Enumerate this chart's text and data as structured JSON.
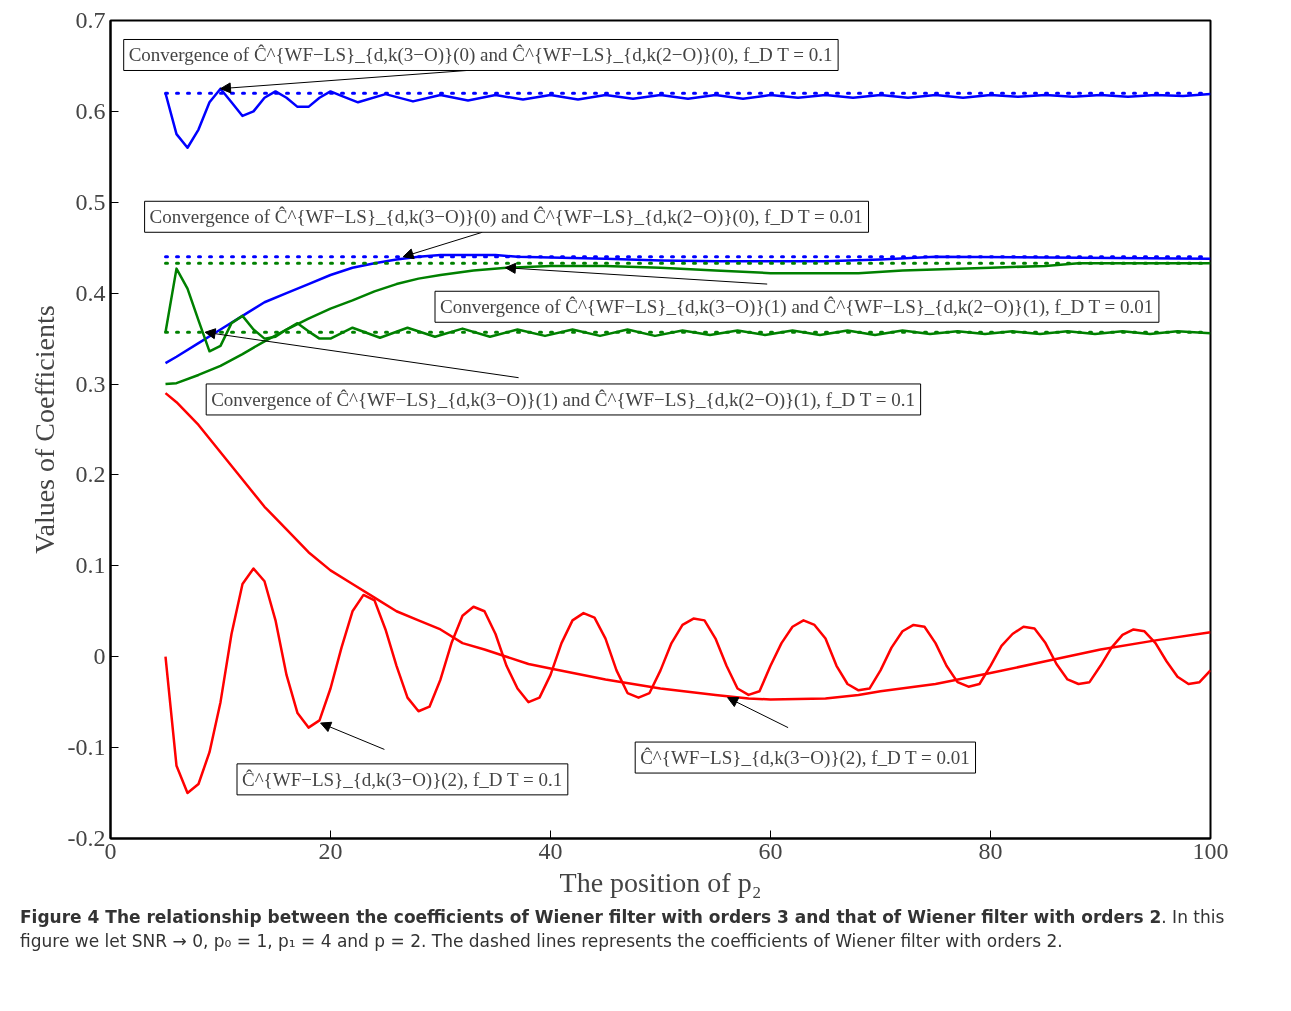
{
  "chart_data": {
    "type": "line",
    "xlabel": "The position of p₂",
    "ylabel": "Values of Coefficients",
    "xlim": [
      0,
      100
    ],
    "ylim": [
      -0.2,
      0.7
    ],
    "xticks": [
      0,
      20,
      40,
      60,
      80,
      100
    ],
    "yticks": [
      -0.2,
      -0.1,
      0,
      0.1,
      0.2,
      0.3,
      0.4,
      0.5,
      0.6,
      0.7
    ],
    "grid": false,
    "line_style": "solid",
    "series": [
      {
        "color": "#0000ff",
        "x": [
          5,
          6,
          7,
          8,
          9,
          10,
          11,
          12,
          13,
          14,
          15,
          16,
          17,
          18,
          19,
          20,
          21,
          22.5,
          25,
          27.5,
          30,
          32.5,
          35,
          37.5,
          40,
          42.5,
          45,
          47.5,
          50,
          52.5,
          55,
          57.5,
          60,
          62.5,
          65,
          67.5,
          70,
          72.5,
          75,
          77.5,
          80,
          82.5,
          85,
          87.5,
          90,
          92.5,
          95,
          97.5,
          100
        ],
        "values": [
          0.62,
          0.575,
          0.56,
          0.58,
          0.61,
          0.625,
          0.61,
          0.595,
          0.6,
          0.615,
          0.622,
          0.615,
          0.605,
          0.605,
          0.615,
          0.622,
          0.617,
          0.61,
          0.619,
          0.611,
          0.618,
          0.612,
          0.618,
          0.613,
          0.618,
          0.613,
          0.618,
          0.614,
          0.618,
          0.614,
          0.618,
          0.614,
          0.618,
          0.615,
          0.618,
          0.615,
          0.618,
          0.615,
          0.618,
          0.615,
          0.618,
          0.616,
          0.618,
          0.616,
          0.618,
          0.616,
          0.618,
          0.617,
          0.619
        ]
      },
      {
        "color": "#0000ff",
        "line_style": "dotted",
        "x": [
          5,
          100
        ],
        "values": [
          0.62,
          0.62
        ]
      },
      {
        "color": "#0000ff",
        "x": [
          5,
          6,
          8,
          10,
          12,
          14,
          16,
          18,
          20,
          22,
          24,
          26,
          28,
          30,
          35,
          37,
          45,
          50,
          55,
          65,
          70,
          75,
          100
        ],
        "values": [
          0.323,
          0.33,
          0.345,
          0.36,
          0.375,
          0.39,
          0.4,
          0.41,
          0.42,
          0.428,
          0.433,
          0.437,
          0.44,
          0.442,
          0.442,
          0.44,
          0.438,
          0.436,
          0.435,
          0.435,
          0.437,
          0.44,
          0.438
        ]
      },
      {
        "color": "#0000ff",
        "line_style": "dotted",
        "x": [
          5,
          100
        ],
        "values": [
          0.44,
          0.44
        ]
      },
      {
        "color": "#008000",
        "x": [
          5,
          6,
          8,
          10,
          12,
          14,
          16,
          18,
          20,
          22,
          24,
          26,
          28,
          30,
          33,
          36,
          40,
          45,
          50,
          55,
          60,
          68,
          72,
          80,
          85,
          88,
          100
        ],
        "values": [
          0.3,
          0.301,
          0.31,
          0.32,
          0.333,
          0.347,
          0.36,
          0.372,
          0.383,
          0.392,
          0.402,
          0.41,
          0.416,
          0.42,
          0.425,
          0.428,
          0.43,
          0.43,
          0.428,
          0.425,
          0.422,
          0.422,
          0.425,
          0.428,
          0.43,
          0.433,
          0.433
        ]
      },
      {
        "color": "#008000",
        "line_style": "dotted",
        "x": [
          5,
          100
        ],
        "values": [
          0.433,
          0.433
        ]
      },
      {
        "color": "#008000",
        "x": [
          5,
          6,
          7,
          8,
          9,
          10,
          11,
          12,
          13,
          14,
          15,
          16,
          17,
          18,
          19,
          20,
          22,
          24.5,
          27,
          29.5,
          32,
          34.5,
          37,
          39.5,
          42,
          44.5,
          47,
          49.5,
          52,
          54.5,
          57,
          59.5,
          62,
          64.5,
          67,
          69.5,
          72,
          74.5,
          77,
          79.5,
          82,
          84.5,
          87,
          89.5,
          92,
          94.5,
          97,
          100
        ],
        "values": [
          0.357,
          0.427,
          0.405,
          0.37,
          0.336,
          0.342,
          0.367,
          0.375,
          0.36,
          0.35,
          0.352,
          0.36,
          0.367,
          0.358,
          0.35,
          0.35,
          0.362,
          0.351,
          0.362,
          0.352,
          0.361,
          0.352,
          0.36,
          0.353,
          0.36,
          0.353,
          0.36,
          0.353,
          0.359,
          0.354,
          0.359,
          0.354,
          0.359,
          0.354,
          0.359,
          0.354,
          0.359,
          0.355,
          0.358,
          0.355,
          0.358,
          0.355,
          0.358,
          0.355,
          0.358,
          0.355,
          0.358,
          0.356
        ]
      },
      {
        "color": "#008000",
        "line_style": "dotted",
        "x": [
          5,
          100
        ],
        "values": [
          0.357,
          0.357
        ]
      },
      {
        "color": "#ff0000",
        "x": [
          5,
          6,
          7,
          8,
          9,
          10,
          11,
          12,
          13,
          14,
          15,
          16,
          17,
          18,
          19,
          20,
          21,
          22,
          23,
          24,
          25,
          26,
          27,
          28,
          29,
          30,
          31,
          32,
          33,
          34,
          35,
          36,
          37,
          38,
          39,
          40,
          41,
          42,
          43,
          44,
          45,
          46,
          47,
          48,
          49,
          50,
          51,
          52,
          53,
          54,
          55,
          56,
          57,
          58,
          59,
          60,
          61,
          62,
          63,
          64,
          65,
          66,
          67,
          68,
          69,
          70,
          71,
          72,
          73,
          74,
          75,
          76,
          77,
          78,
          79,
          80,
          81,
          82,
          83,
          84,
          85,
          86,
          87,
          88,
          89,
          90,
          91,
          92,
          93,
          94,
          95,
          96,
          97,
          98,
          99,
          100
        ],
        "values": [
          0.0,
          -0.12,
          -0.15,
          -0.14,
          -0.105,
          -0.05,
          0.025,
          0.08,
          0.097,
          0.083,
          0.04,
          -0.02,
          -0.062,
          -0.078,
          -0.07,
          -0.035,
          0.01,
          0.05,
          0.068,
          0.062,
          0.03,
          -0.01,
          -0.045,
          -0.06,
          -0.055,
          -0.025,
          0.015,
          0.045,
          0.055,
          0.05,
          0.025,
          -0.01,
          -0.035,
          -0.05,
          -0.045,
          -0.02,
          0.015,
          0.04,
          0.048,
          0.043,
          0.02,
          -0.015,
          -0.04,
          -0.045,
          -0.04,
          -0.015,
          0.015,
          0.035,
          0.042,
          0.04,
          0.02,
          -0.01,
          -0.035,
          -0.042,
          -0.038,
          -0.01,
          0.015,
          0.033,
          0.04,
          0.035,
          0.02,
          -0.01,
          -0.03,
          -0.037,
          -0.035,
          -0.015,
          0.01,
          0.028,
          0.035,
          0.033,
          0.015,
          -0.01,
          -0.028,
          -0.033,
          -0.03,
          -0.01,
          0.012,
          0.025,
          0.033,
          0.031,
          0.015,
          -0.008,
          -0.025,
          -0.03,
          -0.028,
          -0.01,
          0.01,
          0.024,
          0.03,
          0.028,
          0.015,
          -0.005,
          -0.022,
          -0.03,
          -0.028,
          -0.015
        ]
      },
      {
        "color": "#ff0000",
        "x": [
          5,
          6,
          8,
          10,
          12,
          14,
          16,
          18,
          20,
          22,
          24,
          26,
          28,
          30,
          32,
          34,
          36,
          38,
          40,
          45,
          50,
          55,
          58,
          60,
          65,
          68,
          70,
          75,
          80,
          85,
          90,
          95,
          100
        ],
        "values": [
          0.29,
          0.28,
          0.255,
          0.225,
          0.195,
          0.165,
          0.14,
          0.115,
          0.095,
          0.08,
          0.065,
          0.05,
          0.04,
          0.03,
          0.015,
          0.008,
          0.0,
          -0.008,
          -0.013,
          -0.025,
          -0.035,
          -0.042,
          -0.046,
          -0.047,
          -0.046,
          -0.042,
          -0.038,
          -0.03,
          -0.018,
          -0.005,
          0.008,
          0.018,
          0.027
        ]
      }
    ],
    "annotations": [
      {
        "text": "Convergence of Ĉ^{WF−LS}_{d,k(3−O)}(0) and Ĉ^{WF−LS}_{d,k(2−O)}(0), f_D T = 0.1",
        "x": 10,
        "y": 0.625
      },
      {
        "text": "Convergence of Ĉ^{WF−LS}_{d,k(3−O)}(0) and Ĉ^{WF−LS}_{d,k(2−O)}(0), f_D T = 0.01",
        "x": 26.6,
        "y": 0.44
      },
      {
        "text": "Convergence of Ĉ^{WF−LS}_{d,k(3−O)}(1) and Ĉ^{WF−LS}_{d,k(2−O)}(1), f_D T = 0.01",
        "x": 35.9,
        "y": 0.428
      },
      {
        "text": "Convergence of Ĉ^{WF−LS}_{d,k(3−O)}(1) and Ĉ^{WF−LS}_{d,k(2−O)}(1), f_D T = 0.1",
        "x": 8.6,
        "y": 0.357
      },
      {
        "text": "Ĉ^{WF−LS}_{d,k(3−O)}(2), f_D T = 0.1",
        "x": 19.1,
        "y": -0.073
      },
      {
        "text": "Ĉ^{WF−LS}_{d,k(3−O)}(2), f_D T = 0.01",
        "x": 56.1,
        "y": -0.045
      },
      "Figure 4 The relationship between the coefficients of Wiener filter with orders 3 and that of Wiener filter with orders 2",
      ". In this figure we let SNR → 0, p₀ = 1, p₁ = 4 and p = 2. The dashed lines represents the coefficients of Wiener filter with orders 2."
    ]
  }
}
